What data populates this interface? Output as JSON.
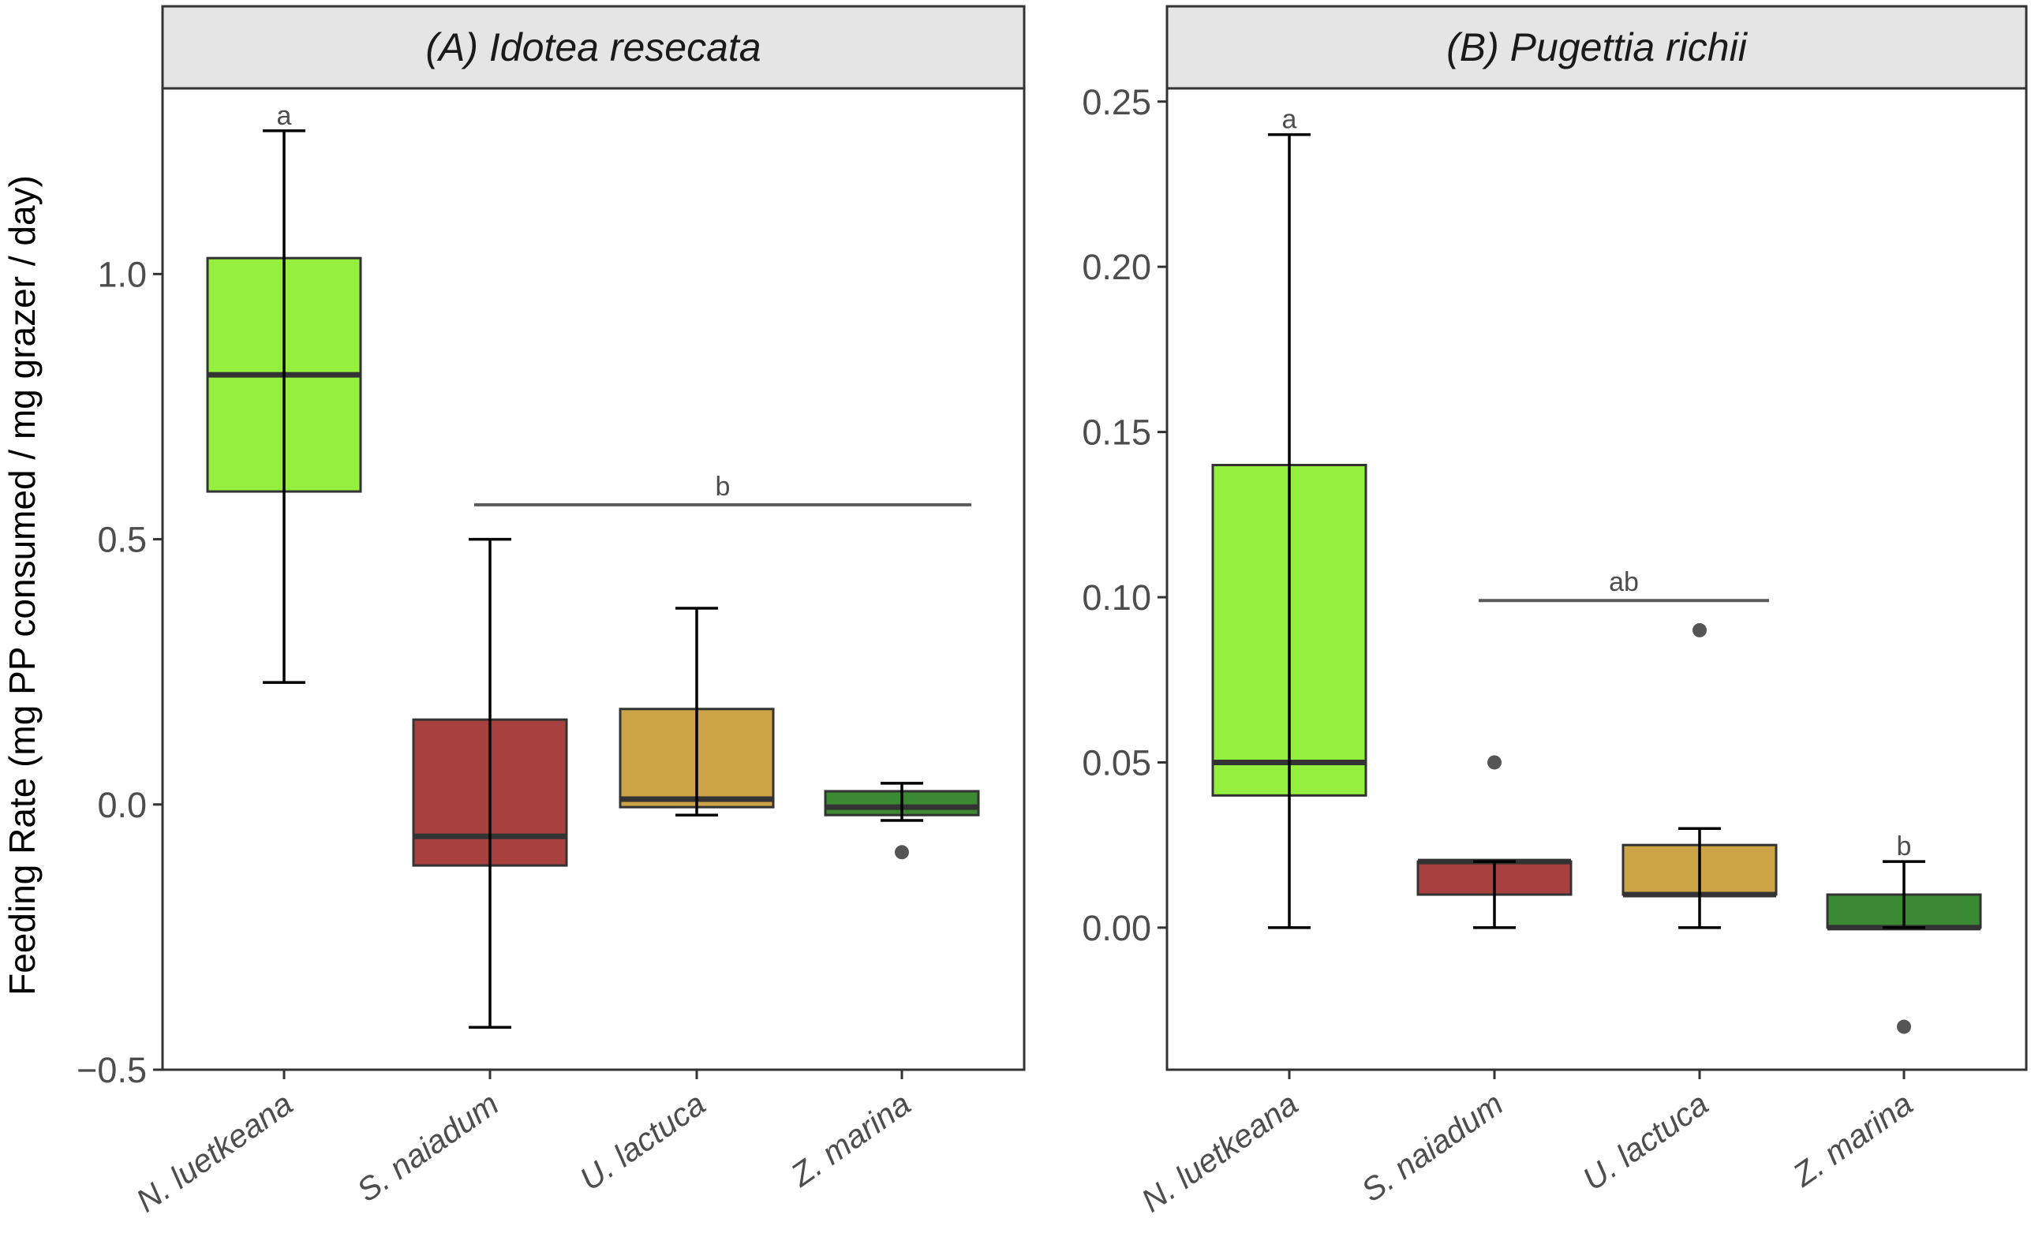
{
  "chart_data": {
    "type": "boxplot",
    "ylabel": "Feeding Rate (mg PP consumed / mg grazer / day)",
    "colors": {
      "N. luetkeana": "#95ef3f",
      "S. naiadum": "#a84040",
      "U. lactuca": "#cca347",
      "Z. marina": "#3b8a33",
      "strip_fill": "#e5e5e5",
      "significance_line": "#5a5a5a",
      "outlier": "#555555"
    },
    "panels": [
      {
        "title": "(A) Idotea resecata",
        "categories": [
          "N. luetkeana",
          "S. naiadum",
          "U. lactuca",
          "Z. marina"
        ],
        "ylim": [
          -0.5,
          1.35
        ],
        "yticks": [
          -0.5,
          0.0,
          0.5,
          1.0
        ],
        "ytick_labels": [
          "−0.5",
          "0.0",
          "0.5",
          "1.0"
        ],
        "boxes": [
          {
            "category": "N. luetkeana",
            "whisker_low": 0.23,
            "q1": 0.59,
            "median": 0.81,
            "q3": 1.03,
            "whisker_high": 1.27,
            "outliers": []
          },
          {
            "category": "S. naiadum",
            "whisker_low": -0.42,
            "q1": -0.115,
            "median": -0.06,
            "q3": 0.16,
            "whisker_high": 0.5,
            "outliers": []
          },
          {
            "category": "U. lactuca",
            "whisker_low": -0.02,
            "q1": -0.005,
            "median": 0.01,
            "q3": 0.18,
            "whisker_high": 0.37,
            "outliers": []
          },
          {
            "category": "Z. marina",
            "whisker_low": -0.03,
            "q1": -0.02,
            "median": -0.005,
            "q3": 0.025,
            "whisker_high": 0.04,
            "outliers": [
              -0.09
            ]
          }
        ],
        "annotations": [
          {
            "text": "a",
            "category_from": "N. luetkeana",
            "category_to": "N. luetkeana",
            "y": 1.27,
            "line": false
          },
          {
            "text": "b",
            "category_from": "S. naiadum",
            "category_to": "Z. marina",
            "y": 0.565,
            "line": true
          }
        ]
      },
      {
        "title": "(B) Pugettia richii",
        "categories": [
          "N. luetkeana",
          "S. naiadum",
          "U. lactuca",
          "Z. marina"
        ],
        "ylim": [
          -0.043,
          0.254
        ],
        "yticks": [
          0.0,
          0.05,
          0.1,
          0.15,
          0.2,
          0.25
        ],
        "ytick_labels": [
          "0.00",
          "0.05",
          "0.10",
          "0.15",
          "0.20",
          "0.25"
        ],
        "boxes": [
          {
            "category": "N. luetkeana",
            "whisker_low": 0.0,
            "q1": 0.04,
            "median": 0.05,
            "q3": 0.14,
            "whisker_high": 0.24,
            "outliers": []
          },
          {
            "category": "S. naiadum",
            "whisker_low": 0.0,
            "q1": 0.01,
            "median": 0.02,
            "q3": 0.02,
            "whisker_high": 0.02,
            "outliers": [
              0.05
            ]
          },
          {
            "category": "U. lactuca",
            "whisker_low": 0.0,
            "q1": 0.01,
            "median": 0.01,
            "q3": 0.025,
            "whisker_high": 0.03,
            "outliers": [
              0.09
            ]
          },
          {
            "category": "Z. marina",
            "whisker_low": 0.0,
            "q1": 0.0,
            "median": 0.0,
            "q3": 0.01,
            "whisker_high": 0.02,
            "outliers": [
              -0.03
            ]
          }
        ],
        "annotations": [
          {
            "text": "a",
            "category_from": "N. luetkeana",
            "category_to": "N. luetkeana",
            "y": 0.24,
            "line": false
          },
          {
            "text": "ab",
            "category_from": "S. naiadum",
            "category_to": "U. lactuca",
            "y": 0.099,
            "line": true
          },
          {
            "text": "b",
            "category_from": "Z. marina",
            "category_to": "Z. marina",
            "y": 0.02,
            "line": false
          }
        ]
      }
    ]
  }
}
